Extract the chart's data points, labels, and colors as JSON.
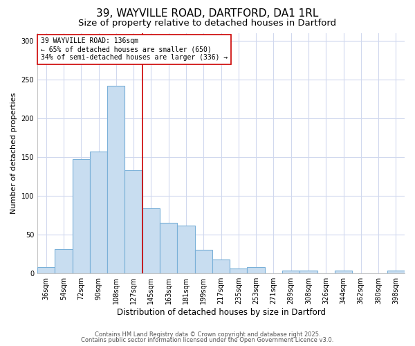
{
  "title": "39, WAYVILLE ROAD, DARTFORD, DA1 1RL",
  "subtitle": "Size of property relative to detached houses in Dartford",
  "xlabel": "Distribution of detached houses by size in Dartford",
  "ylabel": "Number of detached properties",
  "bar_labels": [
    "36sqm",
    "54sqm",
    "72sqm",
    "90sqm",
    "108sqm",
    "127sqm",
    "145sqm",
    "163sqm",
    "181sqm",
    "199sqm",
    "217sqm",
    "235sqm",
    "253sqm",
    "271sqm",
    "289sqm",
    "308sqm",
    "326sqm",
    "344sqm",
    "362sqm",
    "380sqm",
    "398sqm"
  ],
  "bar_values": [
    8,
    31,
    147,
    157,
    242,
    133,
    84,
    65,
    61,
    30,
    18,
    6,
    8,
    0,
    3,
    3,
    0,
    3,
    0,
    0,
    3
  ],
  "bar_color": "#c8ddf0",
  "bar_edge_color": "#7ab0d8",
  "vline_x": 5.5,
  "vline_color": "#cc0000",
  "annotation_text": "39 WAYVILLE ROAD: 136sqm\n← 65% of detached houses are smaller (650)\n34% of semi-detached houses are larger (336) →",
  "annotation_box_color": "white",
  "annotation_box_edge_color": "#cc0000",
  "ylim": [
    0,
    310
  ],
  "yticks": [
    0,
    50,
    100,
    150,
    200,
    250,
    300
  ],
  "background_color": "#ffffff",
  "axes_background": "#ffffff",
  "grid_color": "#d0d8ee",
  "footer1": "Contains HM Land Registry data © Crown copyright and database right 2025.",
  "footer2": "Contains public sector information licensed under the Open Government Licence v3.0.",
  "title_fontsize": 11,
  "subtitle_fontsize": 9.5,
  "xlabel_fontsize": 8.5,
  "ylabel_fontsize": 8,
  "tick_fontsize": 7,
  "annotation_fontsize": 7,
  "footer_fontsize": 6
}
